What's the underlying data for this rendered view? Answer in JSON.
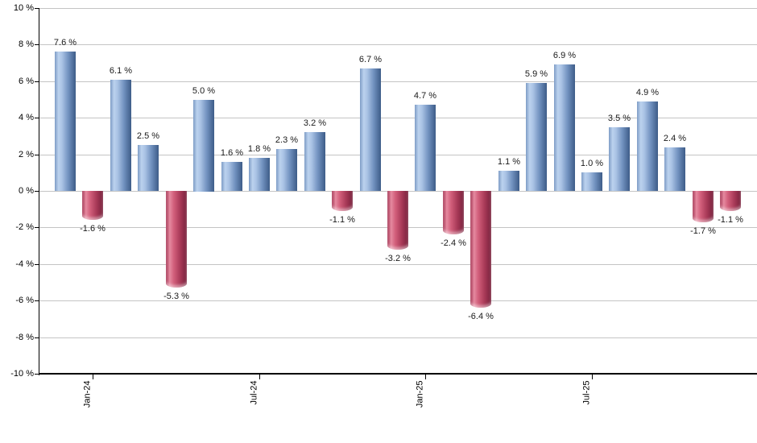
{
  "chart_data": {
    "type": "bar",
    "title": "",
    "xlabel": "",
    "ylabel": "",
    "unit": "%",
    "ylim": [
      -10,
      10
    ],
    "grid": true,
    "legend": null,
    "y_tick_values": [
      10,
      8,
      6,
      4,
      2,
      0,
      -2,
      -4,
      -6,
      -8,
      -10
    ],
    "y_tick_labels": [
      "10 %",
      "8 %",
      "6 %",
      "4 %",
      "2 %",
      "0 %",
      "-2 %",
      "-4 %",
      "-6 %",
      "-8 %",
      "-10 %"
    ],
    "bars": [
      {
        "value": 7.6,
        "label": "7.6 %"
      },
      {
        "value": -1.6,
        "label": "-1.6 %"
      },
      {
        "value": 6.1,
        "label": "6.1 %"
      },
      {
        "value": 2.5,
        "label": "2.5 %"
      },
      {
        "value": -5.3,
        "label": "-5.3 %"
      },
      {
        "value": 5.0,
        "label": "5.0 %"
      },
      {
        "value": 1.6,
        "label": "1.6 %"
      },
      {
        "value": 1.8,
        "label": "1.8 %"
      },
      {
        "value": 2.3,
        "label": "2.3 %"
      },
      {
        "value": 3.2,
        "label": "3.2 %"
      },
      {
        "value": -1.1,
        "label": "-1.1 %"
      },
      {
        "value": 6.7,
        "label": "6.7 %"
      },
      {
        "value": -3.2,
        "label": "-3.2 %"
      },
      {
        "value": 4.7,
        "label": "4.7 %"
      },
      {
        "value": -2.4,
        "label": "-2.4 %"
      },
      {
        "value": -6.4,
        "label": "-6.4 %"
      },
      {
        "value": 1.1,
        "label": "1.1 %"
      },
      {
        "value": 5.9,
        "label": "5.9 %"
      },
      {
        "value": 6.9,
        "label": "6.9 %"
      },
      {
        "value": 1.0,
        "label": "1.0 %"
      },
      {
        "value": 3.5,
        "label": "3.5 %"
      },
      {
        "value": 4.9,
        "label": "4.9 %"
      },
      {
        "value": 2.4,
        "label": "2.4 %"
      },
      {
        "value": -1.7,
        "label": "-1.7 %"
      },
      {
        "value": -1.1,
        "label": "-1.1 %"
      }
    ],
    "x_ticks": [
      {
        "text": "Jan-24",
        "bar_index": 1
      },
      {
        "text": "Jul-24",
        "bar_index": 7
      },
      {
        "text": "Jan-25",
        "bar_index": 13
      },
      {
        "text": "Jul-25",
        "bar_index": 19
      }
    ],
    "colors": {
      "positive_bar": "#7e9cc6",
      "positive_bar_highlight": "#bcd2ee",
      "positive_bar_dark": "#3d5c88",
      "negative_bar": "#d25f7b",
      "negative_bar_highlight": "#e58aa0",
      "negative_bar_dark": "#77203b",
      "gridline": "#c4c4c4",
      "axis": "#000000",
      "label_text": "#1a1a1a",
      "background": "#ffffff"
    }
  }
}
